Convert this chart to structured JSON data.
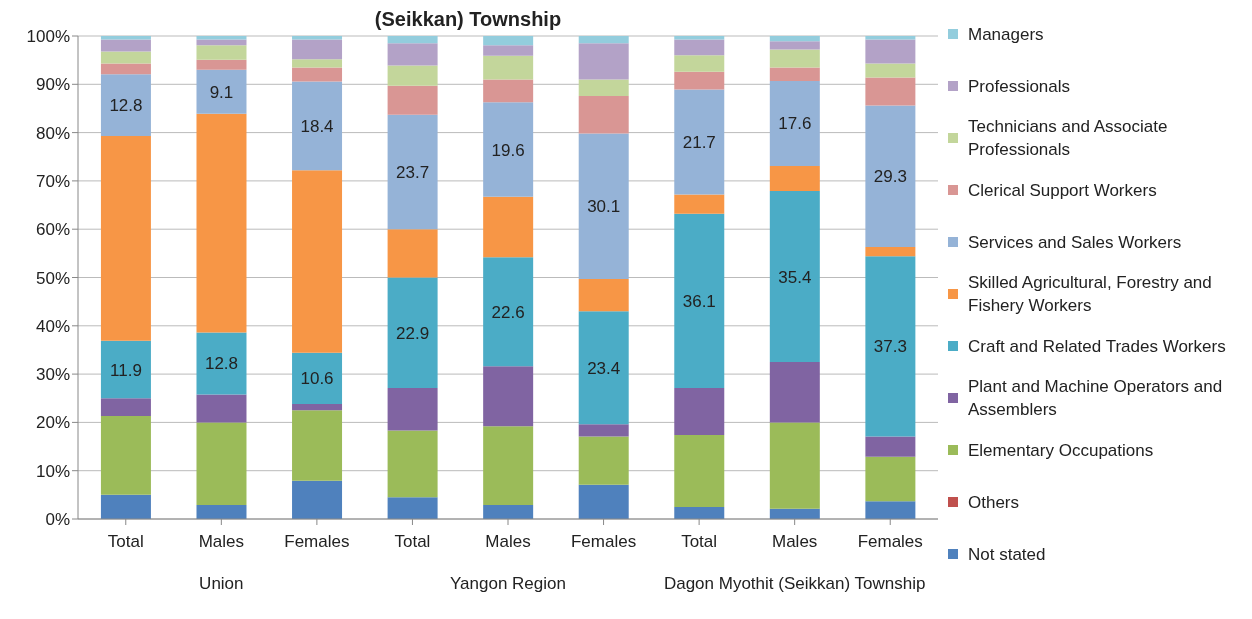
{
  "chart_data": {
    "type": "bar",
    "stacked": true,
    "title": "(Seikkan) Township",
    "categories": [
      "Total",
      "Males",
      "Females",
      "Total",
      "Males",
      "Females",
      "Total",
      "Males",
      "Females"
    ],
    "annotations": [
      "Union",
      "Yangon Region",
      "Dagon Myothit (Seikkan) Township"
    ],
    "series": [
      {
        "name": "Not stated",
        "color": "#4f81bd",
        "values": [
          5.0,
          2.9,
          7.9,
          4.5,
          2.9,
          7.1,
          2.5,
          2.1,
          3.7
        ]
      },
      {
        "name": "Others",
        "color": "#c0504d",
        "values": [
          0,
          0,
          0,
          0,
          0,
          0,
          0,
          0,
          0
        ]
      },
      {
        "name": "Elementary Occupations",
        "color": "#9bbb59",
        "values": [
          16.3,
          17.1,
          14.6,
          13.8,
          16.3,
          10.0,
          14.9,
          17.9,
          9.2
        ]
      },
      {
        "name": "Plant and Machine Operators and Assemblers",
        "color": "#8064a2",
        "values": [
          3.7,
          5.8,
          1.3,
          8.8,
          12.4,
          2.5,
          9.7,
          12.5,
          4.2
        ]
      },
      {
        "name": "Craft and Related Trades Workers",
        "color": "#4bacc6",
        "values": [
          11.9,
          12.8,
          10.6,
          22.9,
          22.6,
          23.4,
          36.1,
          35.4,
          37.3
        ],
        "value_labels": [
          "11.9",
          "12.8",
          "10.6",
          "22.9",
          "22.6",
          "23.4",
          "36.1",
          "35.4",
          "37.3"
        ]
      },
      {
        "name": "Skilled Agricultural, Forestry and Fishery Workers",
        "color": "#f79646",
        "values": [
          42.4,
          45.3,
          37.8,
          10.0,
          12.5,
          6.7,
          4.0,
          5.2,
          1.9
        ]
      },
      {
        "name": "Services and Sales Workers",
        "color": "#95b3d7",
        "values": [
          12.8,
          9.1,
          18.4,
          23.7,
          19.6,
          30.1,
          21.7,
          17.6,
          29.3
        ],
        "value_labels": [
          "12.8",
          "9.1",
          "18.4",
          "23.7",
          "19.6",
          "30.1",
          "21.7",
          "17.6",
          "29.3"
        ]
      },
      {
        "name": "Clerical Support Workers",
        "color": "#d99694",
        "values": [
          2.2,
          2.1,
          2.9,
          6.0,
          4.7,
          7.8,
          3.7,
          2.8,
          5.8
        ]
      },
      {
        "name": "Technicians and Associate Professionals",
        "color": "#c3d69b",
        "values": [
          2.5,
          3.0,
          1.7,
          4.2,
          4.9,
          3.4,
          3.4,
          3.7,
          2.9
        ]
      },
      {
        "name": "Professionals",
        "color": "#b3a2c7",
        "values": [
          2.5,
          1.2,
          4.1,
          4.6,
          2.2,
          7.5,
          3.3,
          1.7,
          5.0
        ]
      },
      {
        "name": "Managers",
        "color": "#93cddd",
        "values": [
          0.7,
          0.7,
          0.7,
          1.5,
          1.9,
          1.5,
          0.7,
          1.1,
          0.7
        ]
      }
    ],
    "ylim": [
      0,
      100
    ],
    "yticks": [
      {
        "value": 0,
        "label": "0%"
      },
      {
        "value": 10,
        "label": "10%"
      },
      {
        "value": 20,
        "label": "20%"
      },
      {
        "value": 30,
        "label": "30%"
      },
      {
        "value": 40,
        "label": "40%"
      },
      {
        "value": 50,
        "label": "50%"
      },
      {
        "value": 60,
        "label": "60%"
      },
      {
        "value": 70,
        "label": "70%"
      },
      {
        "value": 80,
        "label": "80%"
      },
      {
        "value": 90,
        "label": "90%"
      },
      {
        "value": 100,
        "label": "100%"
      }
    ],
    "grid": "y",
    "legend": "right"
  }
}
